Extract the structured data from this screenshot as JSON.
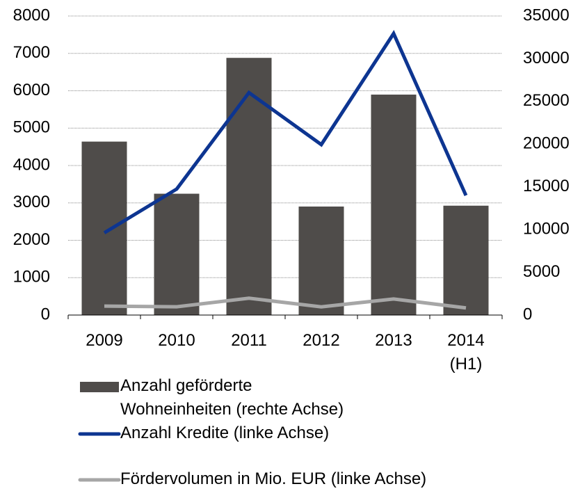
{
  "chart_data": {
    "type": "bar",
    "categories": [
      "2009",
      "2010",
      "2011",
      "2012",
      "2013",
      "2014\n(H1)"
    ],
    "series": [
      {
        "name": "Anzahl geförderte\nWohneinheiten (rechte Achse)",
        "type": "bar",
        "axis": "y2",
        "color": "#4f4c4a",
        "values": [
          20300,
          14200,
          30100,
          12700,
          25800,
          12800
        ]
      },
      {
        "name": "Anzahl Kredite (linke Achse)",
        "type": "line",
        "color": "#0d3591",
        "values": [
          2200,
          3370,
          5950,
          4560,
          7530,
          3200
        ]
      },
      {
        "name": "Fördervolumen in Mio. EUR (linke Achse)",
        "type": "line",
        "color": "#a6a6a6",
        "values": [
          240,
          220,
          450,
          220,
          430,
          190
        ]
      }
    ],
    "ylim": [
      0,
      8000
    ],
    "yticks": [
      0,
      1000,
      2000,
      3000,
      4000,
      5000,
      6000,
      7000,
      8000
    ],
    "y2lim": [
      0,
      35000
    ],
    "y2ticks": [
      0,
      5000,
      10000,
      15000,
      20000,
      25000,
      30000,
      35000
    ],
    "grid": true
  }
}
